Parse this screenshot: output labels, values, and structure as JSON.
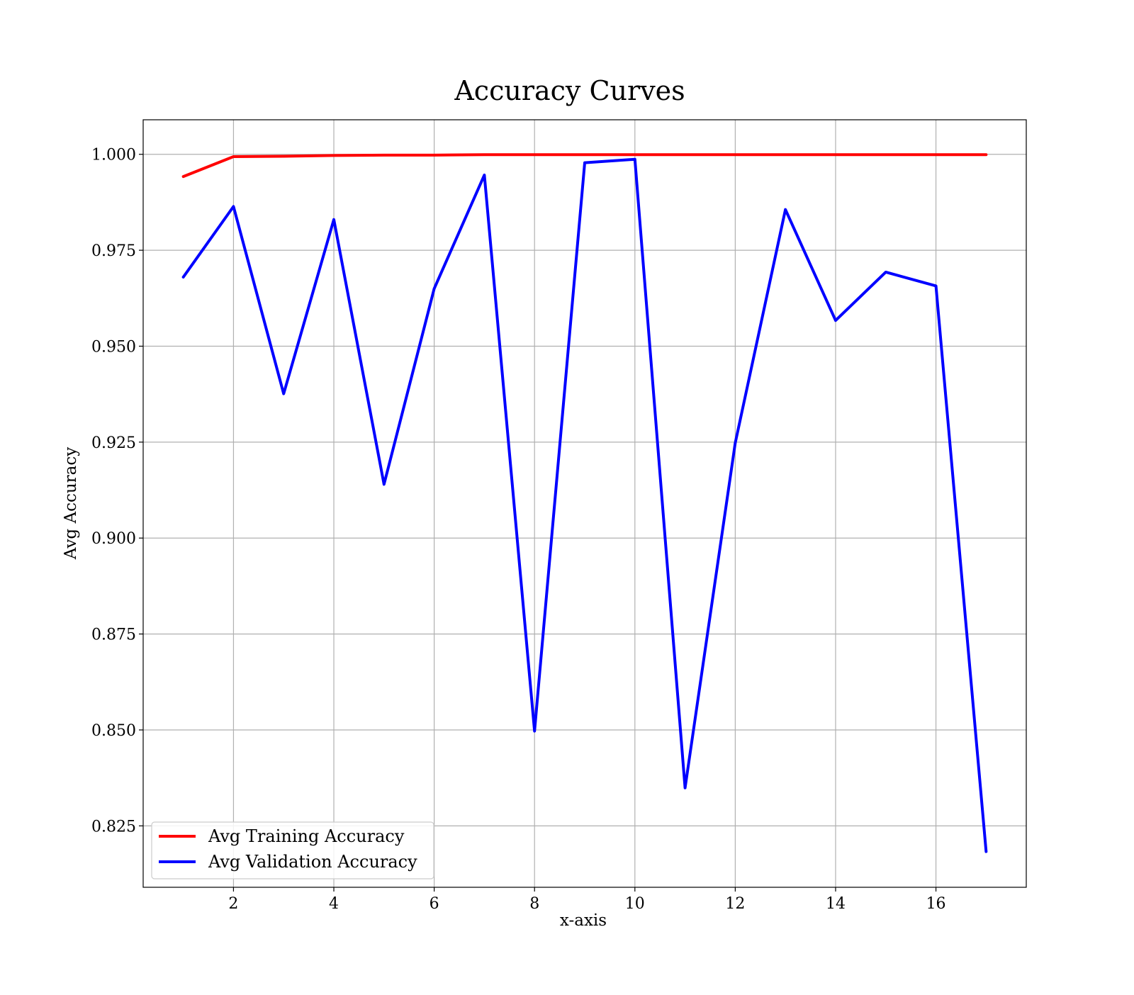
{
  "chart_data": {
    "type": "line",
    "title": "Accuracy Curves",
    "xlabel": "x-axis",
    "ylabel": "Avg Accuracy",
    "x": [
      1,
      2,
      3,
      4,
      5,
      6,
      7,
      8,
      9,
      10,
      11,
      12,
      13,
      14,
      15,
      16,
      17
    ],
    "xlim": [
      0.2,
      17.8
    ],
    "ylim": [
      0.809,
      1.009
    ],
    "xticks": [
      2,
      4,
      6,
      8,
      10,
      12,
      14,
      16
    ],
    "xtick_labels": [
      "2",
      "4",
      "6",
      "8",
      "10",
      "12",
      "14",
      "16"
    ],
    "yticks": [
      0.825,
      0.85,
      0.875,
      0.9,
      0.925,
      0.95,
      0.975,
      1.0
    ],
    "ytick_labels": [
      "0.825",
      "0.850",
      "0.875",
      "0.900",
      "0.925",
      "0.950",
      "0.975",
      "1.000"
    ],
    "grid": true,
    "legend_position": "bottom-left",
    "series": [
      {
        "name": "Avg Training Accuracy",
        "color": "#ff0000",
        "values": [
          0.9942,
          0.9994,
          0.9995,
          0.9997,
          0.9998,
          0.9998,
          0.9999,
          0.9999,
          0.9999,
          0.9999,
          0.9999,
          0.9999,
          0.9999,
          0.9999,
          0.9999,
          0.9999,
          0.9999
        ]
      },
      {
        "name": "Avg Validation Accuracy",
        "color": "#0000ff",
        "values": [
          0.968,
          0.9864,
          0.9376,
          0.983,
          0.914,
          0.965,
          0.9946,
          0.8497,
          0.9978,
          0.9987,
          0.8349,
          0.9248,
          0.9856,
          0.9567,
          0.9693,
          0.9657,
          0.8183
        ]
      }
    ]
  }
}
